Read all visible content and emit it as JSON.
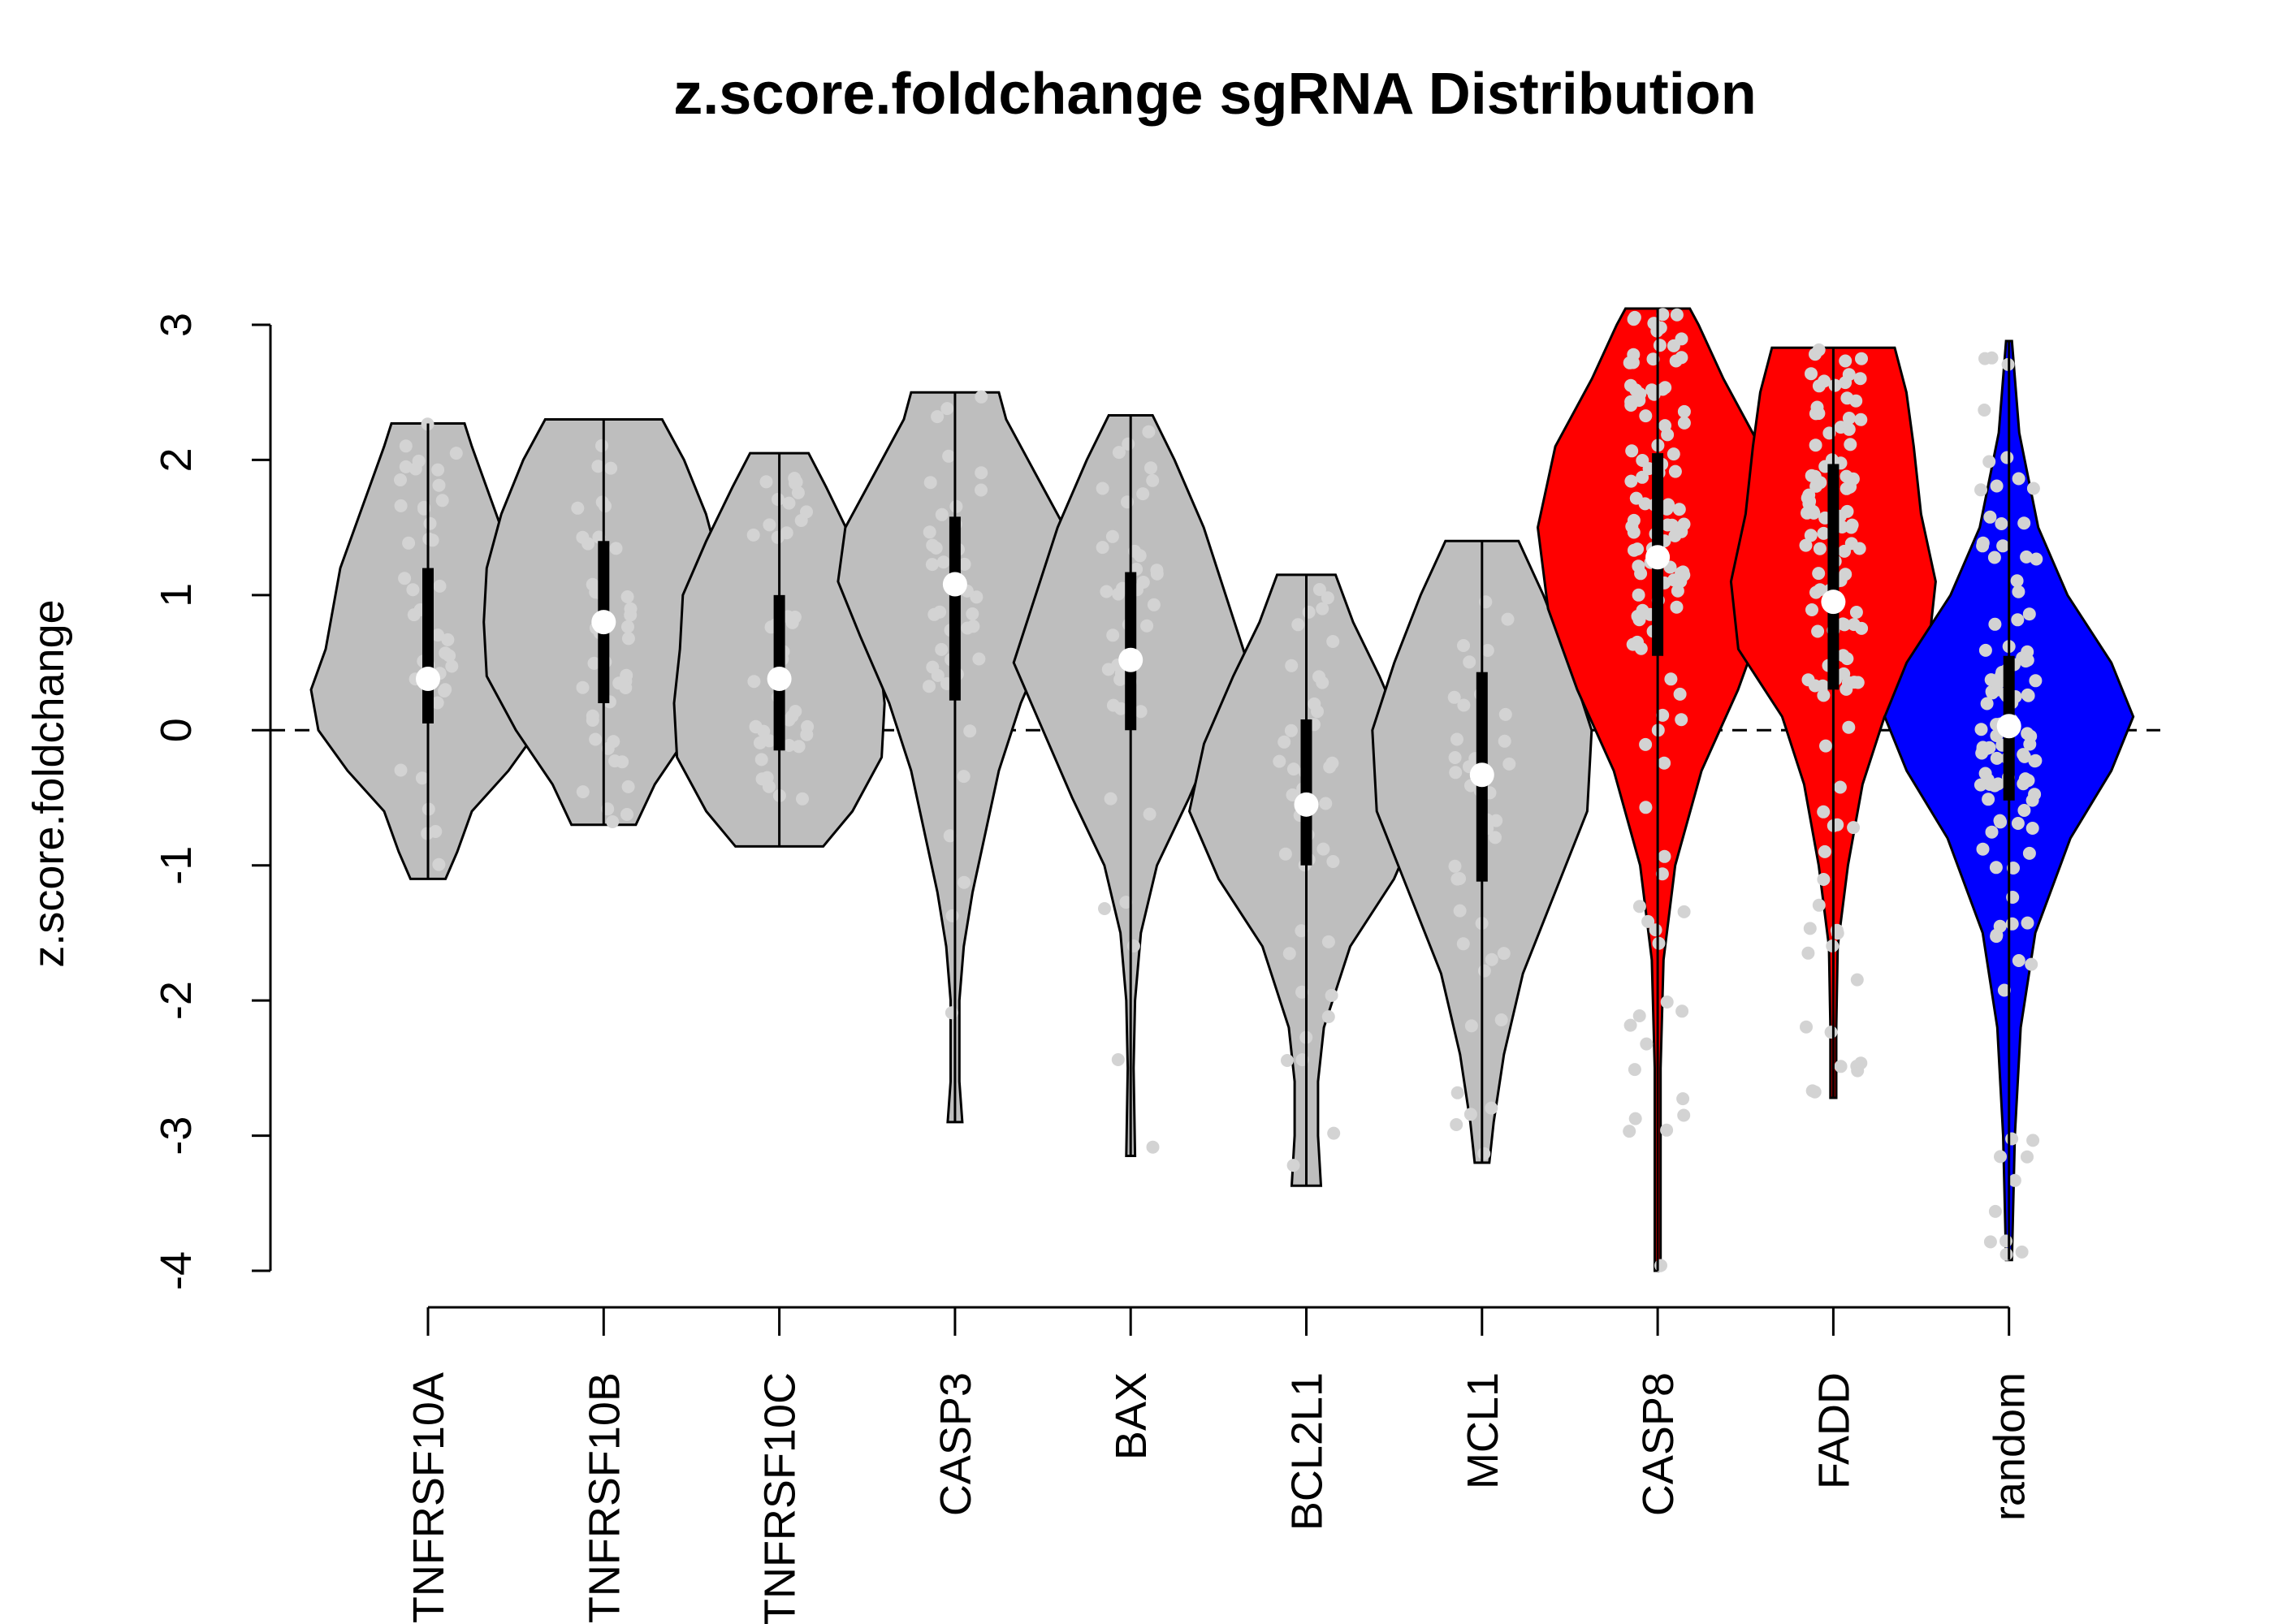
{
  "chart_data": {
    "type": "violin",
    "title": "z.score.foldchange sgRNA Distribution",
    "xlabel": "",
    "ylabel": "z.score.foldchange",
    "ylim": [
      -4,
      3
    ],
    "y_ticks": [
      "3",
      "2",
      "1",
      "0",
      "-1",
      "-2",
      "-3",
      "-4"
    ],
    "reference_line": {
      "y": 0,
      "style": "dashed"
    },
    "colors": {
      "gray": "#bebebe",
      "red": "#ff0000",
      "blue": "#0000ff",
      "median": "#ffffff",
      "points": "#d3d3d3"
    },
    "categories": [
      "TNFRSF10A",
      "TNFRSF10B",
      "TNFRSF10C",
      "CASP3",
      "BAX",
      "BCL2L1",
      "MCL1",
      "CASP8",
      "FADD",
      "random"
    ],
    "groups": [
      {
        "name": "TNFRSF10A",
        "color": "gray",
        "min": -1.1,
        "q1": 0.05,
        "median": 0.38,
        "q3": 1.2,
        "max": 2.27,
        "density": [
          [
            -1.1,
            0.12
          ],
          [
            -0.9,
            0.2
          ],
          [
            -0.6,
            0.3
          ],
          [
            -0.3,
            0.55
          ],
          [
            0,
            0.75
          ],
          [
            0.3,
            0.8
          ],
          [
            0.6,
            0.7
          ],
          [
            0.9,
            0.65
          ],
          [
            1.2,
            0.6
          ],
          [
            1.5,
            0.5
          ],
          [
            1.8,
            0.4
          ],
          [
            2.1,
            0.3
          ],
          [
            2.27,
            0.25
          ]
        ]
      },
      {
        "name": "TNFRSF10B",
        "color": "gray",
        "min": -0.7,
        "q1": 0.2,
        "median": 0.8,
        "q3": 1.4,
        "max": 2.3,
        "density": [
          [
            -0.7,
            0.22
          ],
          [
            -0.4,
            0.35
          ],
          [
            0,
            0.6
          ],
          [
            0.4,
            0.8
          ],
          [
            0.8,
            0.82
          ],
          [
            1.2,
            0.8
          ],
          [
            1.6,
            0.7
          ],
          [
            2.0,
            0.55
          ],
          [
            2.3,
            0.4
          ]
        ]
      },
      {
        "name": "TNFRSF10C",
        "color": "gray",
        "min": -0.86,
        "q1": -0.15,
        "median": 0.38,
        "q3": 1.0,
        "max": 2.05,
        "density": [
          [
            -0.86,
            0.3
          ],
          [
            -0.6,
            0.5
          ],
          [
            -0.2,
            0.7
          ],
          [
            0.2,
            0.72
          ],
          [
            0.6,
            0.68
          ],
          [
            1.0,
            0.66
          ],
          [
            1.4,
            0.5
          ],
          [
            1.8,
            0.32
          ],
          [
            2.05,
            0.2
          ]
        ]
      },
      {
        "name": "CASP3",
        "color": "gray",
        "min": -2.9,
        "q1": 0.22,
        "median": 1.08,
        "q3": 1.58,
        "max": 2.5,
        "density": [
          [
            -2.9,
            0.05
          ],
          [
            -2.6,
            0.03
          ],
          [
            -2.0,
            0.03
          ],
          [
            -1.6,
            0.06
          ],
          [
            -1.2,
            0.12
          ],
          [
            -0.8,
            0.2
          ],
          [
            -0.3,
            0.3
          ],
          [
            0.2,
            0.45
          ],
          [
            0.7,
            0.65
          ],
          [
            1.1,
            0.8
          ],
          [
            1.5,
            0.75
          ],
          [
            1.9,
            0.55
          ],
          [
            2.3,
            0.35
          ],
          [
            2.5,
            0.3
          ]
        ]
      },
      {
        "name": "BAX",
        "color": "gray",
        "min": -3.15,
        "q1": 0.0,
        "median": 0.52,
        "q3": 1.17,
        "max": 2.33,
        "density": [
          [
            -3.15,
            0.03
          ],
          [
            -2.5,
            0.02
          ],
          [
            -2.0,
            0.03
          ],
          [
            -1.5,
            0.07
          ],
          [
            -1.0,
            0.18
          ],
          [
            -0.5,
            0.4
          ],
          [
            0,
            0.6
          ],
          [
            0.5,
            0.8
          ],
          [
            1.0,
            0.65
          ],
          [
            1.5,
            0.5
          ],
          [
            2.0,
            0.3
          ],
          [
            2.33,
            0.15
          ]
        ]
      },
      {
        "name": "BCL2L1",
        "color": "gray",
        "min": -3.37,
        "q1": -1.0,
        "median": -0.55,
        "q3": 0.08,
        "max": 1.15,
        "density": [
          [
            -3.37,
            0.1
          ],
          [
            -3.0,
            0.08
          ],
          [
            -2.6,
            0.08
          ],
          [
            -2.2,
            0.12
          ],
          [
            -1.6,
            0.3
          ],
          [
            -1.1,
            0.6
          ],
          [
            -0.6,
            0.8
          ],
          [
            -0.1,
            0.7
          ],
          [
            0.4,
            0.5
          ],
          [
            0.8,
            0.32
          ],
          [
            1.15,
            0.2
          ]
        ]
      },
      {
        "name": "MCL1",
        "color": "gray",
        "min": -3.2,
        "q1": -1.12,
        "median": -0.33,
        "q3": 0.43,
        "max": 1.4,
        "density": [
          [
            -3.2,
            0.05
          ],
          [
            -2.9,
            0.08
          ],
          [
            -2.4,
            0.15
          ],
          [
            -1.8,
            0.28
          ],
          [
            -1.2,
            0.5
          ],
          [
            -0.6,
            0.72
          ],
          [
            0,
            0.75
          ],
          [
            0.5,
            0.6
          ],
          [
            1.0,
            0.42
          ],
          [
            1.4,
            0.25
          ]
        ]
      },
      {
        "name": "CASP8",
        "color": "red",
        "min": -4.0,
        "q1": 0.55,
        "median": 1.28,
        "q3": 2.05,
        "max": 3.12,
        "density": [
          [
            -4.0,
            0.02
          ],
          [
            -3.5,
            0.02
          ],
          [
            -2.5,
            0.02
          ],
          [
            -1.7,
            0.04
          ],
          [
            -1.0,
            0.12
          ],
          [
            -0.3,
            0.3
          ],
          [
            0.3,
            0.55
          ],
          [
            0.9,
            0.75
          ],
          [
            1.5,
            0.82
          ],
          [
            2.1,
            0.7
          ],
          [
            2.6,
            0.45
          ],
          [
            3.0,
            0.28
          ],
          [
            3.12,
            0.22
          ]
        ]
      },
      {
        "name": "FADD",
        "color": "red",
        "min": -2.72,
        "q1": 0.3,
        "median": 0.95,
        "q3": 1.97,
        "max": 2.83,
        "density": [
          [
            -2.72,
            0.02
          ],
          [
            -2.2,
            0.02
          ],
          [
            -1.6,
            0.03
          ],
          [
            -1.0,
            0.1
          ],
          [
            -0.4,
            0.2
          ],
          [
            0.1,
            0.35
          ],
          [
            0.6,
            0.65
          ],
          [
            1.1,
            0.7
          ],
          [
            1.6,
            0.6
          ],
          [
            2.1,
            0.55
          ],
          [
            2.5,
            0.5
          ],
          [
            2.83,
            0.42
          ]
        ]
      },
      {
        "name": "random",
        "color": "blue",
        "min": -3.92,
        "q1": -0.52,
        "median": 0.03,
        "q3": 0.55,
        "max": 2.88,
        "density": [
          [
            -3.92,
            0.02
          ],
          [
            -3.0,
            0.04
          ],
          [
            -2.2,
            0.08
          ],
          [
            -1.5,
            0.18
          ],
          [
            -0.8,
            0.42
          ],
          [
            -0.3,
            0.7
          ],
          [
            0.1,
            0.85
          ],
          [
            0.5,
            0.7
          ],
          [
            1.0,
            0.4
          ],
          [
            1.5,
            0.2
          ],
          [
            2.2,
            0.07
          ],
          [
            2.88,
            0.02
          ]
        ]
      }
    ]
  }
}
